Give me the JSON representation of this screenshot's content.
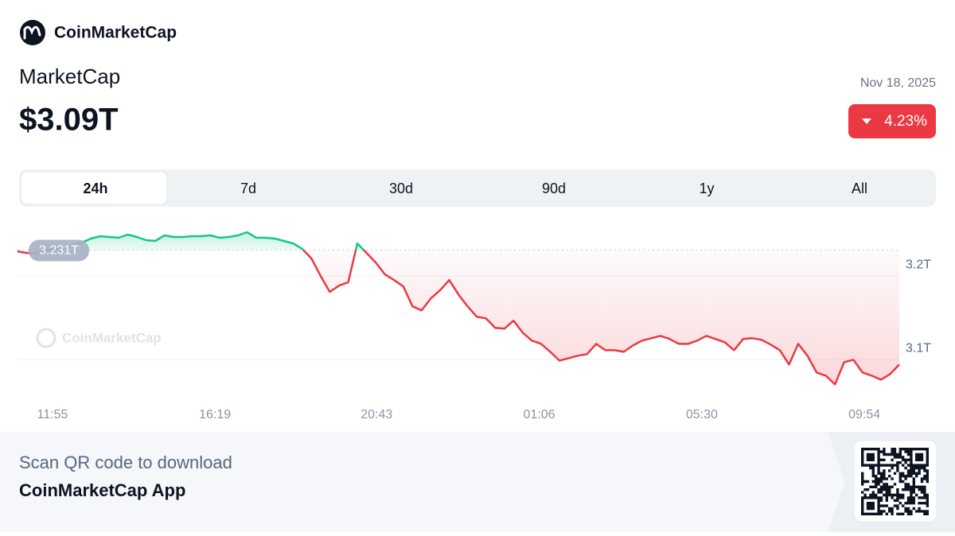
{
  "header": {
    "brand": "CoinMarketCap",
    "title": "MarketCap",
    "value": "$3.09T",
    "date": "Nov 18, 2025",
    "change": "4.23%"
  },
  "tabs": [
    "24h",
    "7d",
    "30d",
    "90d",
    "1y",
    "All"
  ],
  "chart_data": {
    "type": "line",
    "watermark": "CoinMarketCap",
    "reference": {
      "value": 3.231,
      "label": "3.231T"
    },
    "up_color": "#16c784",
    "down_color": "#ea3943",
    "grid": true,
    "xlim": [
      0,
      96
    ],
    "xticks": [
      {
        "value": 3.81,
        "label": "11:55"
      },
      {
        "value": 21.5,
        "label": "16:19"
      },
      {
        "value": 39.1,
        "label": "20:43"
      },
      {
        "value": 56.8,
        "label": "01:06"
      },
      {
        "value": 74.5,
        "label": "05:30"
      },
      {
        "value": 92.2,
        "label": "09:54"
      }
    ],
    "ylim": [
      3.05,
      3.26
    ],
    "yticks": [
      {
        "value": 3.1,
        "label": "3.1T"
      },
      {
        "value": 3.2,
        "label": "3.2T"
      }
    ],
    "values": [
      3.2295,
      3.2276,
      3.2276,
      3.2305,
      3.2324,
      3.2333,
      3.2371,
      3.24,
      3.2448,
      3.2476,
      3.2467,
      3.2457,
      3.2495,
      3.2467,
      3.2429,
      3.2419,
      3.2486,
      3.2467,
      3.2467,
      3.2476,
      3.2476,
      3.2486,
      3.2457,
      3.2467,
      3.2486,
      3.2524,
      3.2457,
      3.2457,
      3.2448,
      3.2419,
      3.239,
      3.2324,
      3.221,
      3.2,
      3.181,
      3.1886,
      3.1924,
      3.239,
      3.2276,
      3.2162,
      3.2019,
      3.1952,
      3.1876,
      3.1638,
      3.159,
      3.1733,
      3.1829,
      3.1952,
      3.1781,
      3.1638,
      3.1514,
      3.1495,
      3.1381,
      3.1371,
      3.1467,
      3.1324,
      3.1229,
      3.119,
      3.1095,
      3.099,
      3.1019,
      3.1048,
      3.1067,
      3.119,
      3.1114,
      3.1114,
      3.1095,
      3.1171,
      3.1229,
      3.1257,
      3.1286,
      3.1248,
      3.119,
      3.119,
      3.1229,
      3.1286,
      3.1248,
      3.121,
      3.1114,
      3.1248,
      3.1257,
      3.1238,
      3.1181,
      3.1114,
      3.0943,
      3.119,
      3.1048,
      3.0848,
      3.081,
      3.0705,
      3.0971,
      3.1,
      3.0848,
      3.081,
      3.0762,
      3.0829,
      3.0943
    ]
  },
  "footer": {
    "line1": "Scan QR code to download",
    "line2": "CoinMarketCap App"
  }
}
